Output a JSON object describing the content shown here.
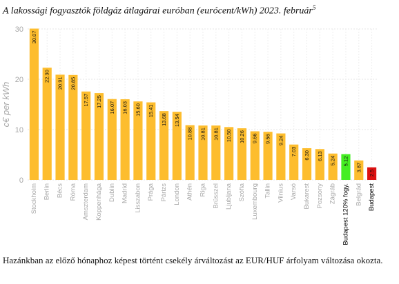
{
  "page": {
    "title": "A lakossági fogyasztók földgáz átlagárai euróban (eurócent/kWh) 2023. február",
    "title_footnote_mark": "5",
    "footnote_text": "Hazánkban az előző hónaphoz képest történt csekély árváltozást az EUR/HUF árfolyam változása okozta."
  },
  "chart_data": {
    "type": "bar",
    "ylabel": "c€ per kWh",
    "ylim": [
      0,
      30
    ],
    "yticks": [
      0,
      10,
      20,
      30
    ],
    "grid": true,
    "categories": [
      "Stockholm",
      "Berlin",
      "Bécs",
      "Róma",
      "Amszterdam",
      "Koppenhága",
      "Dublin",
      "Madrid",
      "Lisszabon",
      "Prága",
      "Párizs",
      "London",
      "Athén",
      "Riga",
      "Brüsszel",
      "Ljubljana",
      "Szófia",
      "Luxembourg",
      "Tallin",
      "Vilnius",
      "Varsó",
      "Bukarest",
      "Pozsony",
      "Zágráb",
      "Budapest 120% fogy.",
      "Belgrád",
      "Budapest"
    ],
    "values": [
      30.07,
      22.3,
      20.91,
      20.85,
      17.57,
      17.25,
      16.07,
      16.03,
      15.6,
      15.41,
      13.68,
      13.54,
      10.88,
      10.81,
      10.81,
      10.5,
      10.26,
      9.66,
      9.56,
      9.24,
      7.03,
      6.3,
      6.13,
      5.24,
      5.12,
      3.87,
      2.5
    ],
    "value_labels": [
      "30.07",
      "22.30",
      "20.91",
      "20.85",
      "17.57",
      "17.25",
      "16.07",
      "16.03",
      "15.60",
      "15.41",
      "13.68",
      "13.54",
      "10.88",
      "10.81",
      "10.81",
      "10.50",
      "10.26",
      "9.66",
      "9.56",
      "9.24",
      "7.03",
      "6.30",
      "6.13",
      "5.24",
      "5.12",
      "3.87",
      "2.5"
    ],
    "bar_colors": [
      "#FDBD2E",
      "#FDBD2E",
      "#FDBD2E",
      "#FDBD2E",
      "#FDBD2E",
      "#FDBD2E",
      "#FDBD2E",
      "#FDBD2E",
      "#FDBD2E",
      "#FDBD2E",
      "#FDBD2E",
      "#FDBD2E",
      "#FDBD2E",
      "#FDBD2E",
      "#FDBD2E",
      "#FDBD2E",
      "#FDBD2E",
      "#FDBD2E",
      "#FDBD2E",
      "#FDBD2E",
      "#FDBD2E",
      "#FDBD2E",
      "#FDBD2E",
      "#FDBD2E",
      "#44EE22",
      "#FDBD2E",
      "#DD1111"
    ],
    "highlight_label_color": "#000000",
    "default_label_color": "#A8A8A8",
    "highlight_categories": [
      "Budapest 120% fogy.",
      "Budapest"
    ]
  }
}
